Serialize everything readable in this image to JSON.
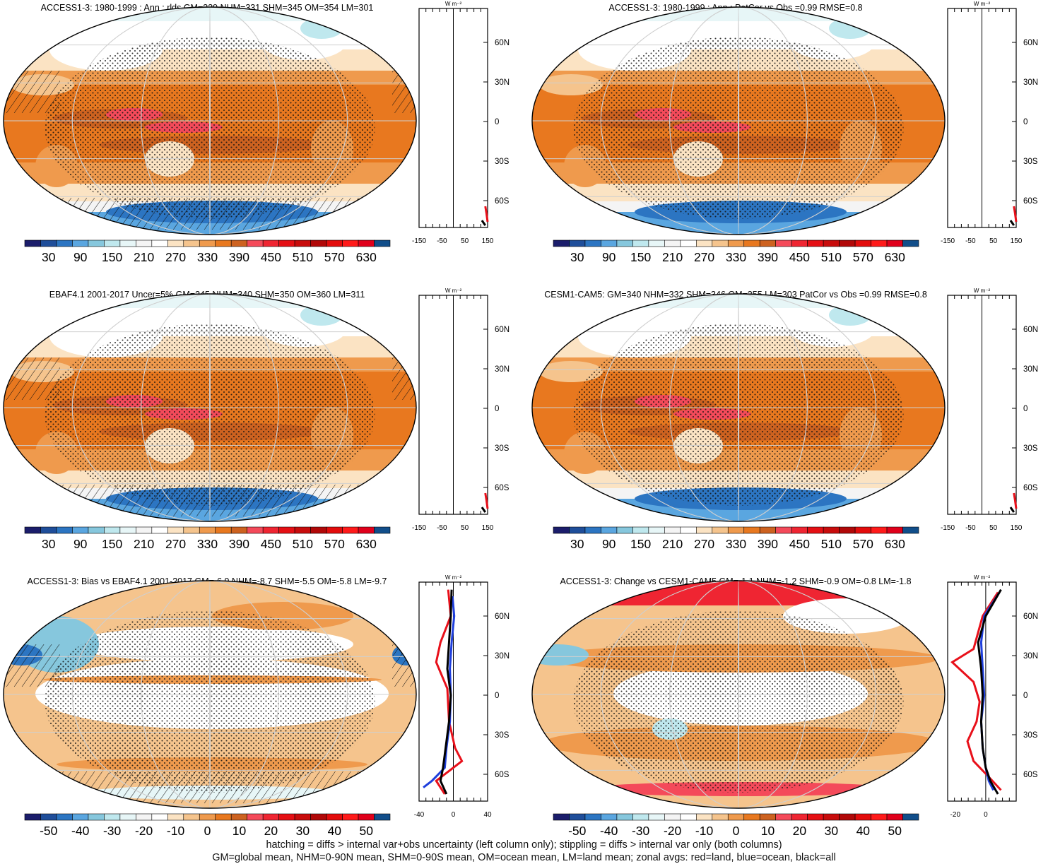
{
  "colors": {
    "abs_scale": [
      "#1b1d6b",
      "#1f4e9a",
      "#2c75c2",
      "#5aa6e0",
      "#86c7dd",
      "#bfe8ee",
      "#e7f6f7",
      "#f4f4f4",
      "#ffffff",
      "#fbe3c3",
      "#f5c48d",
      "#ef9a4d",
      "#e8781f",
      "#cd6220",
      "#f44a5a",
      "#ef2532",
      "#e50f14",
      "#c80c0c",
      "#b10808",
      "#e30c0c",
      "#ff1a1a",
      "#e0001b",
      "#114e8a"
    ],
    "diff_scale": [
      "#1b1d6b",
      "#1f4e9a",
      "#2c75c2",
      "#5aa6e0",
      "#86c7dd",
      "#bfe8ee",
      "#e7f6f7",
      "#f4f4f4",
      "#ffffff",
      "#fbe3c3",
      "#f5c48d",
      "#ef9a4d",
      "#e8781f",
      "#cd6220",
      "#f44a5a",
      "#ef2532",
      "#e50f14",
      "#c80c0c",
      "#b10808",
      "#e30c0c",
      "#ff1a1a",
      "#e0001b",
      "#114e8a"
    ],
    "land": "#e8101a",
    "ocean": "#1f3fdc",
    "all": "#000000"
  },
  "panels": [
    {
      "title": "ACCESS1-3: 1980-1999 : Ann : rlds GM=339 NHM=331 SHM=345 OM=354 LM=301",
      "colorbar": [
        "30",
        "90",
        "150",
        "210",
        "270",
        "330",
        "390",
        "450",
        "510",
        "570",
        "630"
      ],
      "zonal": {
        "units": "W m⁻²",
        "xlim": [
          -150,
          150
        ],
        "xticks": [
          "-150",
          "-50",
          "50",
          "150"
        ],
        "ylabels": [
          "60N",
          "30N",
          "0",
          "30S",
          "60S"
        ]
      },
      "chart_data": {
        "type": "heatmap",
        "title": "ACCESS1-3: 1980-1999 : Ann : rlds GM=339 NHM=331 SHM=345 OM=354 LM=301",
        "colorbar_range": [
          30,
          630
        ],
        "colorbar_ticks": [
          30,
          90,
          150,
          210,
          270,
          330,
          390,
          450,
          510,
          570,
          630
        ],
        "hatching": true,
        "stippling": true
      },
      "mode": "abs",
      "hatch": true
    },
    {
      "title": "ACCESS1-3: 1980-1999 : Ann : PatCor vs Obs =0.99 RMSE=0.8",
      "colorbar": [
        "30",
        "90",
        "150",
        "210",
        "270",
        "330",
        "390",
        "450",
        "510",
        "570",
        "630"
      ],
      "zonal": {
        "units": "W m⁻²",
        "xlim": [
          -150,
          150
        ],
        "xticks": [
          "-150",
          "-50",
          "50",
          "150"
        ],
        "ylabels": [
          "60N",
          "30N",
          "0",
          "30S",
          "60S"
        ]
      },
      "chart_data": {
        "type": "heatmap",
        "title": "ACCESS1-3: 1980-1999 : Ann : PatCor vs Obs =0.99 RMSE=0.8",
        "colorbar_range": [
          30,
          630
        ],
        "colorbar_ticks": [
          30,
          90,
          150,
          210,
          270,
          330,
          390,
          450,
          510,
          570,
          630
        ],
        "hatching": false,
        "stippling": true
      },
      "mode": "abs",
      "hatch": false
    },
    {
      "title": "EBAF4.1 2001-2017 Uncer=5% GM=345 NHM=340 SHM=350 OM=360 LM=311",
      "colorbar": [
        "30",
        "90",
        "150",
        "210",
        "270",
        "330",
        "390",
        "450",
        "510",
        "570",
        "630"
      ],
      "zonal": {
        "units": "W m⁻²",
        "xlim": [
          -150,
          150
        ],
        "xticks": [
          "-150",
          "-50",
          "50",
          "150"
        ],
        "ylabels": [
          "60N",
          "30N",
          "0",
          "30S",
          "60S"
        ]
      },
      "chart_data": {
        "type": "heatmap",
        "title": "EBAF4.1 2001-2017 Uncer=5% GM=345 NHM=340 SHM=350 OM=360 LM=311",
        "colorbar_range": [
          30,
          630
        ],
        "colorbar_ticks": [
          30,
          90,
          150,
          210,
          270,
          330,
          390,
          450,
          510,
          570,
          630
        ],
        "hatching": true,
        "stippling": true
      },
      "mode": "abs",
      "hatch": true
    },
    {
      "title": "CESM1-CAM5: GM=340 NHM=332 SHM=346 OM=355 LM=303 PatCor vs Obs =0.99 RMSE=0.8",
      "colorbar": [
        "30",
        "90",
        "150",
        "210",
        "270",
        "330",
        "390",
        "450",
        "510",
        "570",
        "630"
      ],
      "zonal": {
        "units": "W m⁻²",
        "xlim": [
          -150,
          150
        ],
        "xticks": [
          "-150",
          "-50",
          "50",
          "150"
        ],
        "ylabels": [
          "60N",
          "30N",
          "0",
          "30S",
          "60S"
        ]
      },
      "chart_data": {
        "type": "heatmap",
        "title": "CESM1-CAM5: GM=340 NHM=332 SHM=346 OM=355 LM=303 PatCor vs Obs =0.99 RMSE=0.8",
        "colorbar_range": [
          30,
          630
        ],
        "colorbar_ticks": [
          30,
          90,
          150,
          210,
          270,
          330,
          390,
          450,
          510,
          570,
          630
        ],
        "hatching": false,
        "stippling": true
      },
      "mode": "abs",
      "hatch": false
    },
    {
      "title": "ACCESS1-3: Bias vs EBAF4.1 2001-2017 GM=-6.9 NHM=-8.7 SHM=-5.5 OM=-5.8 LM=-9.7",
      "colorbar": [
        "-50",
        "-40",
        "-30",
        "-20",
        "-10",
        "0",
        "10",
        "20",
        "30",
        "40",
        "50"
      ],
      "zonal": {
        "units": "W m⁻²",
        "xlim": [
          -40,
          40
        ],
        "xticks": [
          "-40",
          "0",
          "40"
        ],
        "ylabels": [
          "60N",
          "30N",
          "0",
          "30S",
          "60S"
        ]
      },
      "chart_data": {
        "type": "heatmap",
        "title": "ACCESS1-3: Bias vs EBAF4.1 2001-2017 GM=-6.9 NHM=-8.7 SHM=-5.5 OM=-5.8 LM=-9.7",
        "colorbar_range": [
          -50,
          50
        ],
        "colorbar_ticks": [
          -50,
          -40,
          -30,
          -20,
          -10,
          0,
          10,
          20,
          30,
          40,
          50
        ],
        "hatching": true,
        "stippling": true
      },
      "mode": "bias",
      "hatch": true
    },
    {
      "title": "ACCESS1-3: Change vs CESM1-CAM5 GM=-1.1 NHM=-1.2 SHM=-0.9 OM=-0.8 LM=-1.8",
      "colorbar": [
        "-50",
        "-40",
        "-30",
        "-20",
        "-10",
        "0",
        "10",
        "20",
        "30",
        "40",
        "50"
      ],
      "zonal": {
        "units": "W m⁻²",
        "xlim": [
          -25,
          20
        ],
        "xticks": [
          "-20",
          "0"
        ],
        "ylabels": [
          "60N",
          "30N",
          "0",
          "30S",
          "60S"
        ]
      },
      "chart_data": {
        "type": "heatmap",
        "title": "ACCESS1-3: Change vs CESM1-CAM5 GM=-1.1 NHM=-1.2 SHM=-0.9 OM=-0.8 LM=-1.8",
        "colorbar_range": [
          -50,
          50
        ],
        "colorbar_ticks": [
          -50,
          -40,
          -30,
          -20,
          -10,
          0,
          10,
          20,
          30,
          40,
          50
        ],
        "hatching": false,
        "stippling": true
      },
      "mode": "change",
      "hatch": false
    }
  ],
  "footer": {
    "line1": "hatching = diffs > internal var+obs uncertainty (left column only); stippling = diffs > internal var only (both columns)",
    "line2": "GM=global mean, NHM=0-90N mean, SHM=0-90S mean, OM=ocean mean, LM=land mean; zonal avgs: red=land, blue=ocean, black=all"
  }
}
